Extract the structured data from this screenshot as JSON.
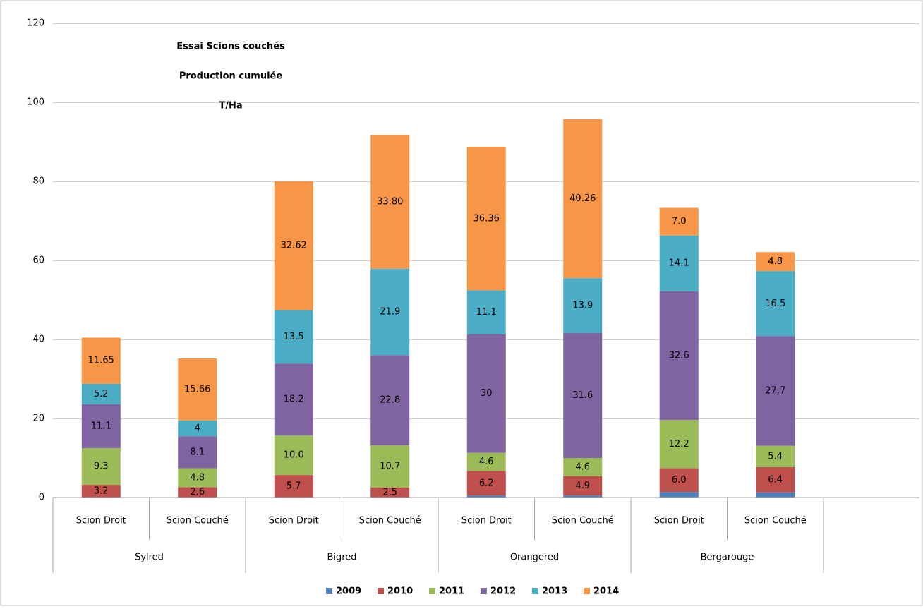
{
  "chart_data": {
    "type": "stacked_bar",
    "title": [
      "Essai Scions couchés",
      "Production cumulée",
      "T/Ha"
    ],
    "categories": [
      "Scion Droit",
      "Scion Couché",
      "Scion Droit",
      "Scion Couché",
      "Scion  Droit",
      "Scion Couché",
      "Scion  Droit",
      "Scion  Couché"
    ],
    "groups": [
      "Sylred",
      "Bigred",
      "Orangered",
      "Bergarouge"
    ],
    "series": [
      {
        "name": "2009",
        "color": "#4f81bd",
        "values": [
          0,
          0,
          0,
          0,
          0.5,
          0.5,
          1.4,
          1.3
        ]
      },
      {
        "name": "2010",
        "color": "#c0504d",
        "values": [
          3.2,
          2.6,
          5.7,
          2.5,
          6.2,
          4.9,
          6.0,
          6.4
        ],
        "value_labels": [
          "3.2",
          "2.6",
          "5.7",
          "2.5",
          "6.2",
          "4.9",
          "6.0",
          "6.4"
        ]
      },
      {
        "name": "2011",
        "color": "#9bbb59",
        "values": [
          9.3,
          4.8,
          10.0,
          10.7,
          4.6,
          4.6,
          12.2,
          5.4
        ],
        "value_labels": [
          "9.3",
          "4.8",
          "10.0",
          "10.7",
          "4.6",
          "4.6",
          "12.2",
          "5.4"
        ]
      },
      {
        "name": "2012",
        "color": "#8064a2",
        "values": [
          11.1,
          8.1,
          18.2,
          22.8,
          30,
          31.6,
          32.6,
          27.7
        ],
        "value_labels": [
          "11.1",
          "8.1",
          "18.2",
          "22.8",
          "30",
          "31.6",
          "32.6",
          "27.7"
        ]
      },
      {
        "name": "2013",
        "color": "#4bacc6",
        "values": [
          5.2,
          4,
          13.5,
          21.9,
          11.1,
          13.9,
          14.1,
          16.5
        ],
        "value_labels": [
          "5.2",
          "4",
          "13.5",
          "21.9",
          "11.1",
          "13.9",
          "14.1",
          "16.5"
        ]
      },
      {
        "name": "2014",
        "color": "#f79646",
        "values": [
          11.65,
          15.66,
          32.62,
          33.8,
          36.36,
          40.26,
          7.0,
          4.8
        ],
        "value_labels": [
          "11.65",
          "15.66",
          "32.62",
          "33.80",
          "36.36",
          "40.26",
          "7.0",
          "4.8"
        ]
      }
    ],
    "ylim": [
      0,
      120
    ],
    "yticks": [
      0,
      20,
      40,
      60,
      80,
      100,
      120
    ],
    "grid": true,
    "legend": "bottom"
  }
}
